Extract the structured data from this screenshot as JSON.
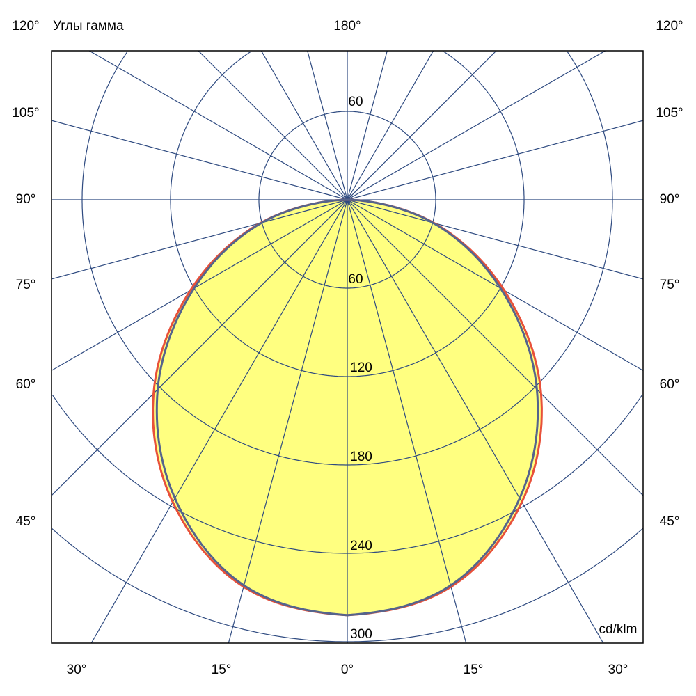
{
  "chart_data": {
    "type": "polar",
    "title": "Углы гамма",
    "unit_label": "cd/klm",
    "radial_ticks": [
      60,
      120,
      180,
      240,
      300
    ],
    "radial_max": 360,
    "top_ring_label": "60",
    "angle_labels": {
      "left": [
        "120°",
        "105°",
        "90°",
        "75°",
        "60°",
        "45°"
      ],
      "right": [
        "120°",
        "105°",
        "90°",
        "75°",
        "60°",
        "45°"
      ],
      "top": "180°",
      "bottom": [
        "30°",
        "15°",
        "0°",
        "15°",
        "30°"
      ]
    },
    "gamma_deg": [
      0,
      15,
      30,
      45,
      60,
      75,
      90
    ],
    "series": [
      {
        "color": "#e8503a",
        "values": [
          282,
          272,
          237,
          186,
          123,
          61,
          0
        ]
      },
      {
        "color": "#55648c",
        "values": [
          282,
          271,
          234,
          182,
          120,
          60,
          0
        ]
      }
    ],
    "fill_color": "#ffff80",
    "grid_color": "#2e4a80",
    "grid": true
  }
}
